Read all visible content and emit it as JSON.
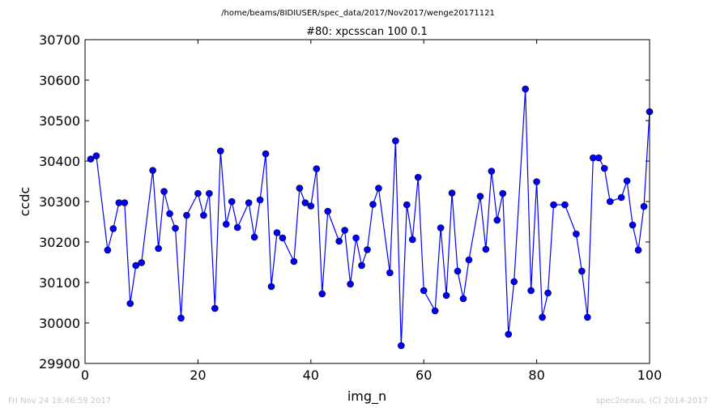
{
  "header": {
    "path": "/home/beams/8IDIUSER/spec_data/2017/Nov2017/wenge20171121"
  },
  "footer": {
    "timestamp": "Fri Nov 24 18:46:59 2017",
    "credit": "spec2nexus, (C) 2014-2017"
  },
  "chart_data": {
    "type": "line",
    "title": "#80: xpcsscan 100 0.1",
    "xlabel": "img_n",
    "ylabel": "ccdc",
    "xlim": [
      0,
      100
    ],
    "ylim": [
      29900,
      30700
    ],
    "xticks": [
      0,
      20,
      40,
      60,
      80,
      100
    ],
    "yticks": [
      29900,
      30000,
      30100,
      30200,
      30300,
      30400,
      30500,
      30600,
      30700
    ],
    "grid": false,
    "series_color": "#0000ff",
    "marker": "circle",
    "series": [
      {
        "x": [
          1,
          2,
          4,
          5,
          6,
          7,
          8,
          9,
          10,
          12,
          13,
          14,
          15,
          16,
          17,
          18,
          20,
          21,
          22,
          23,
          24,
          25,
          26,
          27,
          29,
          30,
          31,
          32,
          33,
          34,
          35,
          37,
          38,
          39,
          40,
          41,
          42,
          43,
          45,
          46,
          47,
          48,
          49,
          50,
          51,
          52,
          54,
          55,
          56,
          57,
          58,
          59,
          60,
          62,
          63,
          64,
          65,
          66,
          67,
          68,
          70,
          71,
          72,
          73,
          74,
          75,
          76,
          78,
          79,
          80,
          81,
          82,
          83,
          85,
          87,
          88,
          89,
          90,
          91,
          92,
          93,
          95,
          96,
          97,
          98,
          99,
          100
        ],
        "y": [
          30405,
          30413,
          30180,
          30233,
          30297,
          30297,
          30048,
          30142,
          30149,
          30377,
          30184,
          30325,
          30270,
          30234,
          30012,
          30266,
          30320,
          30266,
          30320,
          30036,
          30425,
          30244,
          30300,
          30236,
          30297,
          30212,
          30304,
          30418,
          30090,
          30223,
          30210,
          30152,
          30333,
          30297,
          30289,
          30381,
          30072,
          30276,
          30202,
          30229,
          30096,
          30210,
          30142,
          30181,
          30293,
          30333,
          30124,
          30450,
          29944,
          30292,
          30206,
          30360,
          30080,
          30030,
          30235,
          30068,
          30321,
          30128,
          30060,
          30156,
          30313,
          30182,
          30375,
          30254,
          30320,
          29972,
          30102,
          30578,
          30080,
          30349,
          30014,
          30074,
          30292,
          30292,
          30220,
          30128,
          30014,
          30408,
          30408,
          30382,
          30300,
          30310,
          30351,
          30242,
          30180,
          30288,
          30522
        ]
      }
    ]
  }
}
